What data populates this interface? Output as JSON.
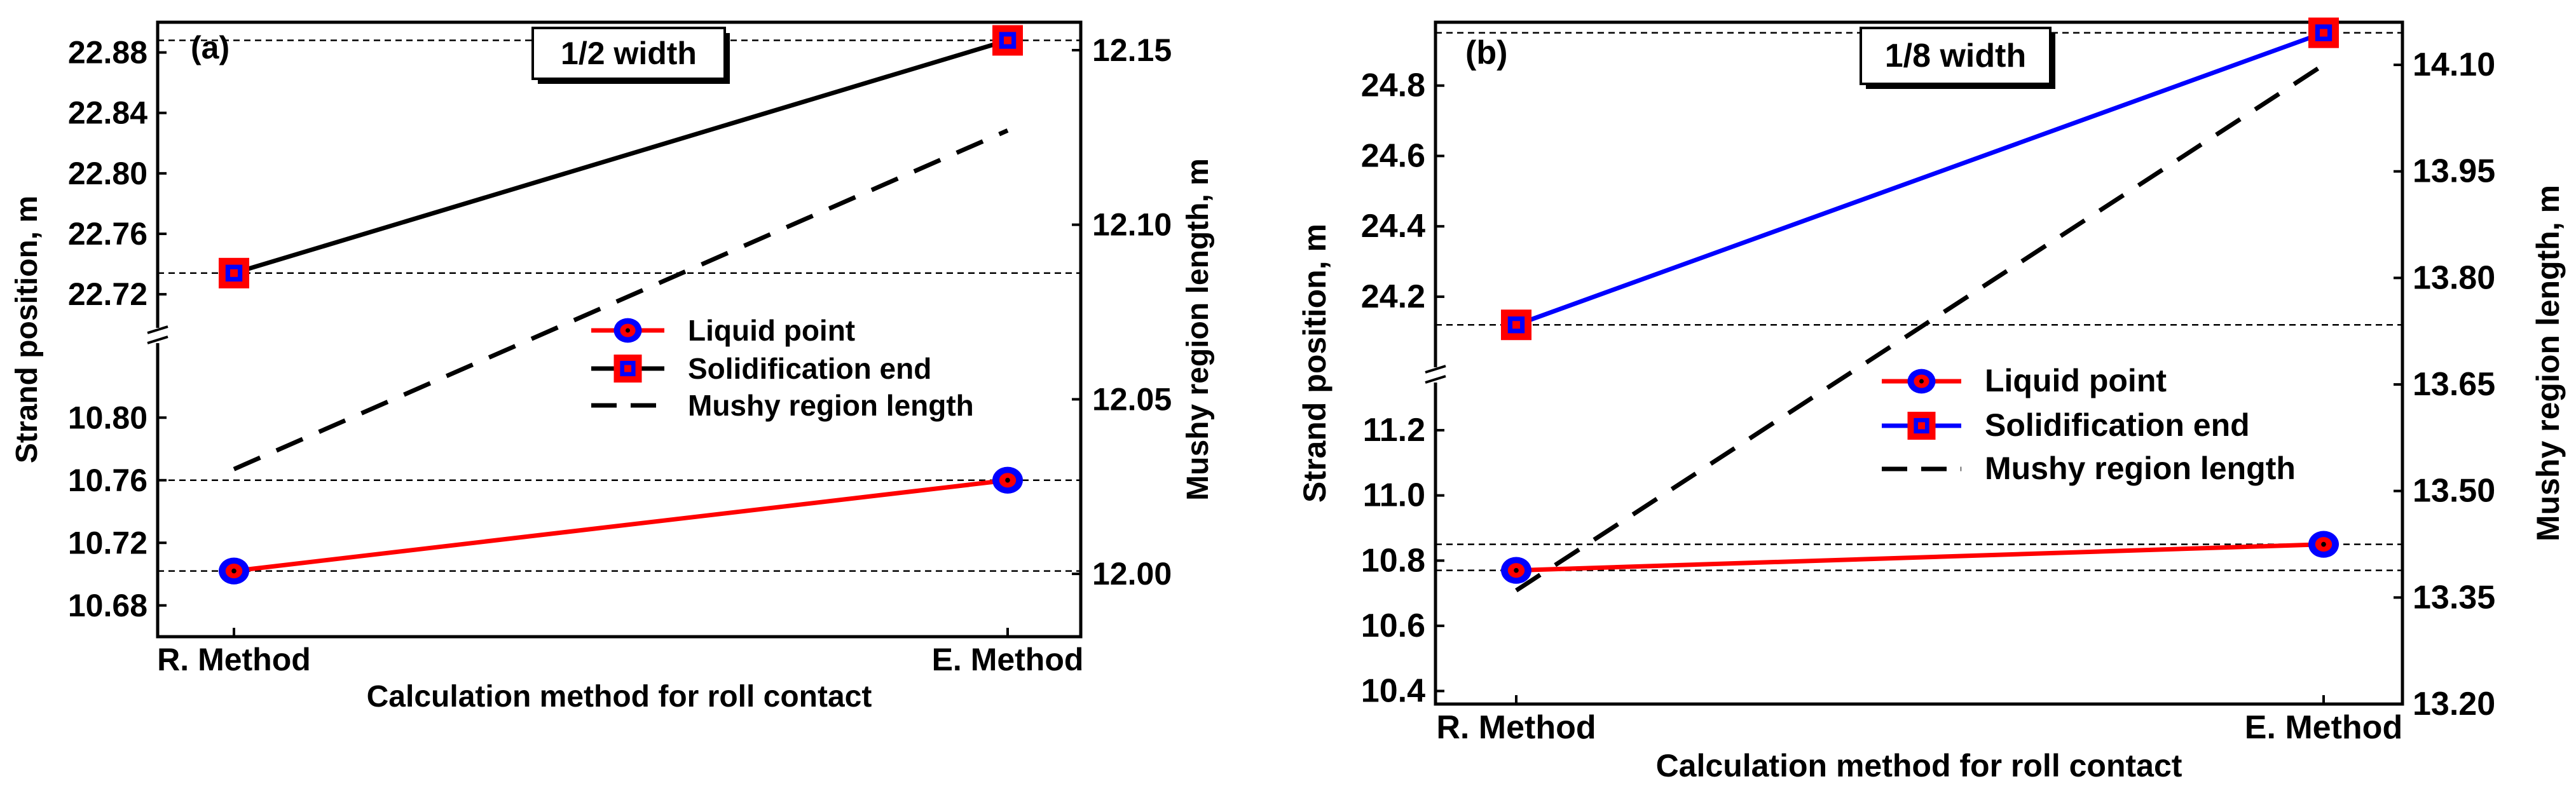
{
  "chart_data": [
    {
      "type": "line",
      "panel_label": "(a)",
      "box_label": "1/2 width",
      "xlabel": "Calculation method for roll contact",
      "ylabel": "Strand position, m",
      "ylabel_right": "Mushy region length, m",
      "categories": [
        "R. Method",
        "E. Method"
      ],
      "y_left_lower": {
        "range": [
          10.66,
          10.82
        ],
        "ticks": [
          "10.68",
          "10.72",
          "10.76",
          "10.80"
        ]
      },
      "y_left_upper": {
        "range": [
          22.715,
          22.9
        ],
        "ticks": [
          "22.72",
          "22.76",
          "22.80",
          "22.84",
          "22.88"
        ]
      },
      "y_right": {
        "range": [
          11.982,
          12.158
        ],
        "ticks": [
          "12.00",
          "12.05",
          "12.10",
          "12.15"
        ]
      },
      "series": [
        {
          "name": "Liquid point",
          "axis": "left_lower",
          "values": [
            10.702,
            10.76
          ],
          "color": "#ff0000",
          "marker": "circle"
        },
        {
          "name": "Solidification end",
          "axis": "left_upper",
          "values": [
            22.734,
            22.888
          ],
          "color": "#000000",
          "marker": "square"
        },
        {
          "name": "Mushy region length",
          "axis": "right",
          "values": [
            12.03,
            12.127
          ],
          "color": "#000000",
          "dash": true
        }
      ],
      "legend_position": "center-right"
    },
    {
      "type": "line",
      "panel_label": "(b)",
      "box_label": "1/8 width",
      "xlabel": "Calculation method for roll contact",
      "ylabel": "Strand position, m",
      "ylabel_right": "Mushy region length, m",
      "categories": [
        "R. Method",
        "E. Method"
      ],
      "y_left_lower": {
        "range": [
          10.36,
          11.36
        ],
        "ticks": [
          "10.4",
          "10.6",
          "10.8",
          "11.0",
          "11.2"
        ]
      },
      "y_left_upper": {
        "range": [
          24.05,
          24.98
        ],
        "ticks": [
          "24.2",
          "24.4",
          "24.6",
          "24.8"
        ]
      },
      "y_right": {
        "range": [
          13.2,
          14.16
        ],
        "ticks": [
          "13.20",
          "13.35",
          "13.50",
          "13.65",
          "13.80",
          "13.95",
          "14.10"
        ]
      },
      "series": [
        {
          "name": "Liquid point",
          "axis": "left_lower",
          "values": [
            10.77,
            10.85
          ],
          "color": "#ff0000",
          "marker": "circle"
        },
        {
          "name": "Solidification end",
          "axis": "left_upper",
          "values": [
            24.12,
            24.95
          ],
          "color": "#0000ff",
          "marker": "square"
        },
        {
          "name": "Mushy region length",
          "axis": "right",
          "values": [
            13.36,
            14.1
          ],
          "color": "#000000",
          "dash": true
        }
      ],
      "legend_position": "center-right"
    }
  ]
}
